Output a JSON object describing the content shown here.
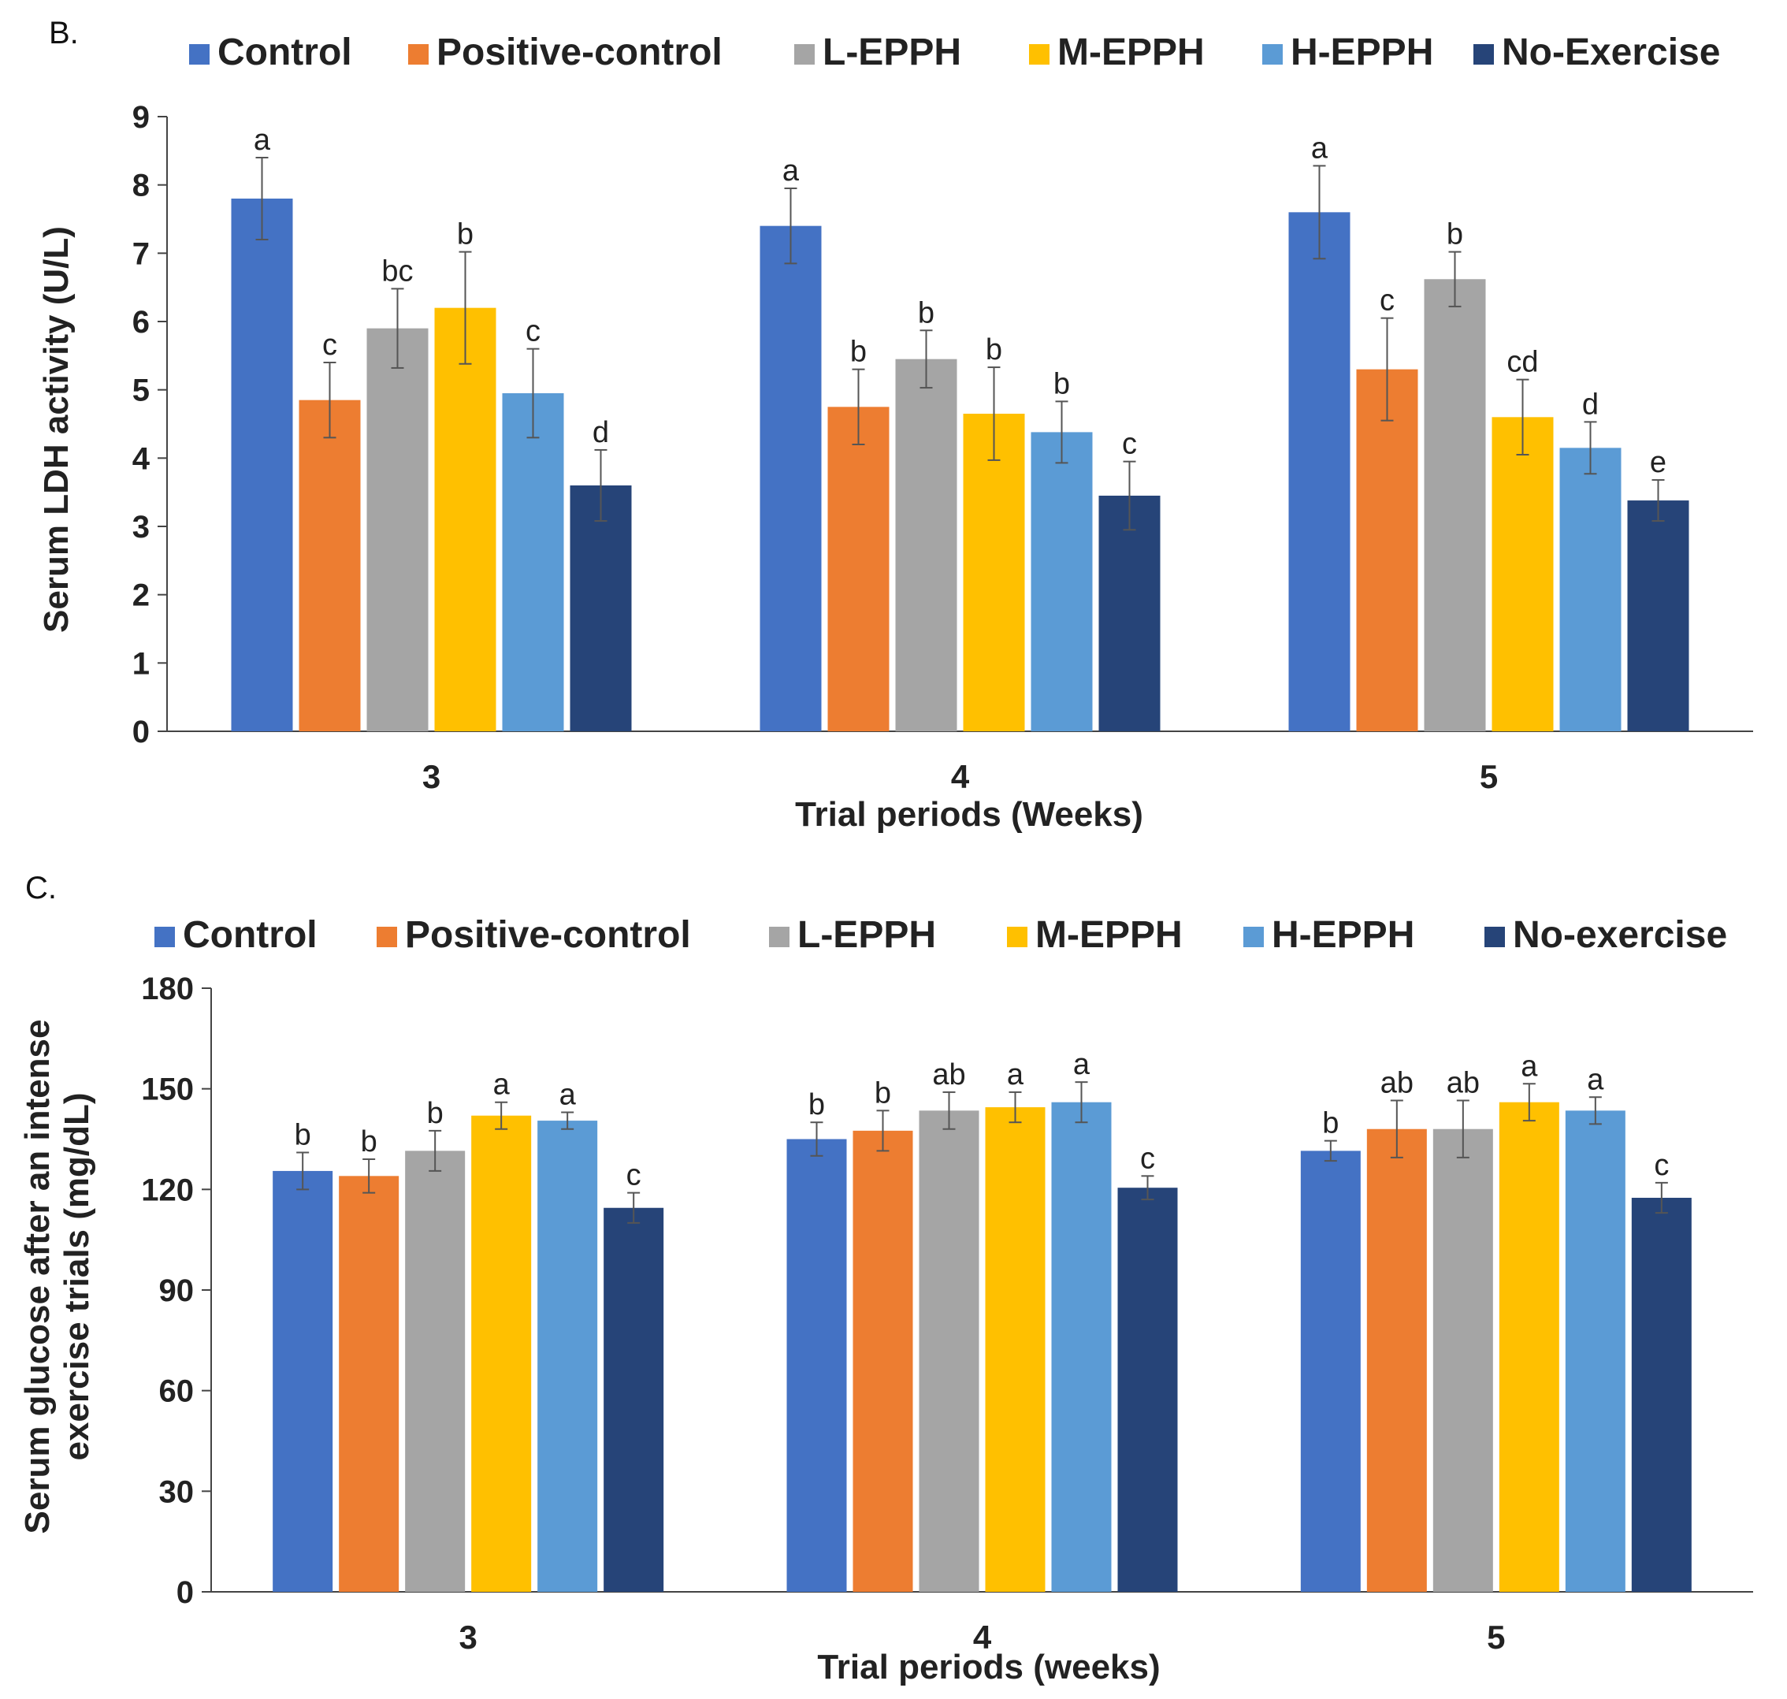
{
  "chart_data": [
    {
      "type": "bar",
      "panel_label": "B.",
      "title": "",
      "categories": [
        "3",
        "4",
        "5"
      ],
      "xlabel": "Trial periods (Weeks)",
      "ylabel": "Serum LDH activity (U/L)",
      "ylim": [
        0,
        9
      ],
      "yticks": [
        "0",
        "1",
        "2",
        "3",
        "4",
        "5",
        "6",
        "7",
        "8",
        "9"
      ],
      "legend_position": "top",
      "series": [
        {
          "name": "Control",
          "color": "#4472C4",
          "values": [
            7.8,
            7.4,
            7.6
          ],
          "errors": [
            0.6,
            0.55,
            0.68
          ],
          "labels": [
            "a",
            "a",
            "a"
          ]
        },
        {
          "name": "Positive-control",
          "color": "#ED7D31",
          "values": [
            4.85,
            4.75,
            5.3
          ],
          "errors": [
            0.55,
            0.55,
            0.75
          ],
          "labels": [
            "c",
            "b",
            "c"
          ]
        },
        {
          "name": "L-EPPH",
          "color": "#A5A5A5",
          "values": [
            5.9,
            5.45,
            6.62
          ],
          "errors": [
            0.58,
            0.42,
            0.4
          ],
          "labels": [
            "bc",
            "b",
            "b"
          ]
        },
        {
          "name": "M-EPPH",
          "color": "#FFC000",
          "values": [
            6.2,
            4.65,
            4.6
          ],
          "errors": [
            0.82,
            0.68,
            0.55
          ],
          "labels": [
            "b",
            "b",
            "cd"
          ]
        },
        {
          "name": "H-EPPH",
          "color": "#5B9BD5",
          "values": [
            4.95,
            4.38,
            4.15
          ],
          "errors": [
            0.65,
            0.45,
            0.38
          ],
          "labels": [
            "c",
            "b",
            "d"
          ]
        },
        {
          "name": "No-Exercise",
          "color": "#264478",
          "values": [
            3.6,
            3.45,
            3.38
          ],
          "errors": [
            0.52,
            0.5,
            0.3
          ],
          "labels": [
            "d",
            "c",
            "e"
          ]
        }
      ]
    },
    {
      "type": "bar",
      "panel_label": "C.",
      "title": "",
      "categories": [
        "3",
        "4",
        "5"
      ],
      "xlabel": "Trial periods (weeks)",
      "ylabel": "Serum glucose after an intense exercise trials (mg/dL)",
      "ylabel_lines": [
        "Serum glucose after an intense",
        "exercise trials (mg/dL)"
      ],
      "ylim": [
        0,
        180
      ],
      "yticks": [
        "0",
        "30",
        "60",
        "90",
        "120",
        "150",
        "180"
      ],
      "legend_position": "top",
      "series": [
        {
          "name": "Control",
          "color": "#4472C4",
          "values": [
            125.5,
            135,
            131.5
          ],
          "errors": [
            5.5,
            5,
            3
          ],
          "labels": [
            "b",
            "b",
            "b"
          ]
        },
        {
          "name": "Positive-control",
          "color": "#ED7D31",
          "values": [
            124,
            137.5,
            138
          ],
          "errors": [
            5,
            6,
            8.5
          ],
          "labels": [
            "b",
            "b",
            "ab"
          ]
        },
        {
          "name": "L-EPPH",
          "color": "#A5A5A5",
          "values": [
            131.5,
            143.5,
            138
          ],
          "errors": [
            6,
            5.5,
            8.5
          ],
          "labels": [
            "b",
            "ab",
            "ab"
          ]
        },
        {
          "name": "M-EPPH",
          "color": "#FFC000",
          "values": [
            142,
            144.5,
            146
          ],
          "errors": [
            4,
            4.5,
            5.5
          ],
          "labels": [
            "a",
            "a",
            "a"
          ]
        },
        {
          "name": "H-EPPH",
          "color": "#5B9BD5",
          "values": [
            140.5,
            146,
            143.5
          ],
          "errors": [
            2.5,
            6,
            4
          ],
          "labels": [
            "a",
            "a",
            "a"
          ]
        },
        {
          "name": "No-exercise",
          "color": "#264478",
          "values": [
            114.5,
            120.5,
            117.5
          ],
          "errors": [
            4.5,
            3.5,
            4.5
          ],
          "labels": [
            "c",
            "c",
            "c"
          ]
        }
      ]
    }
  ]
}
